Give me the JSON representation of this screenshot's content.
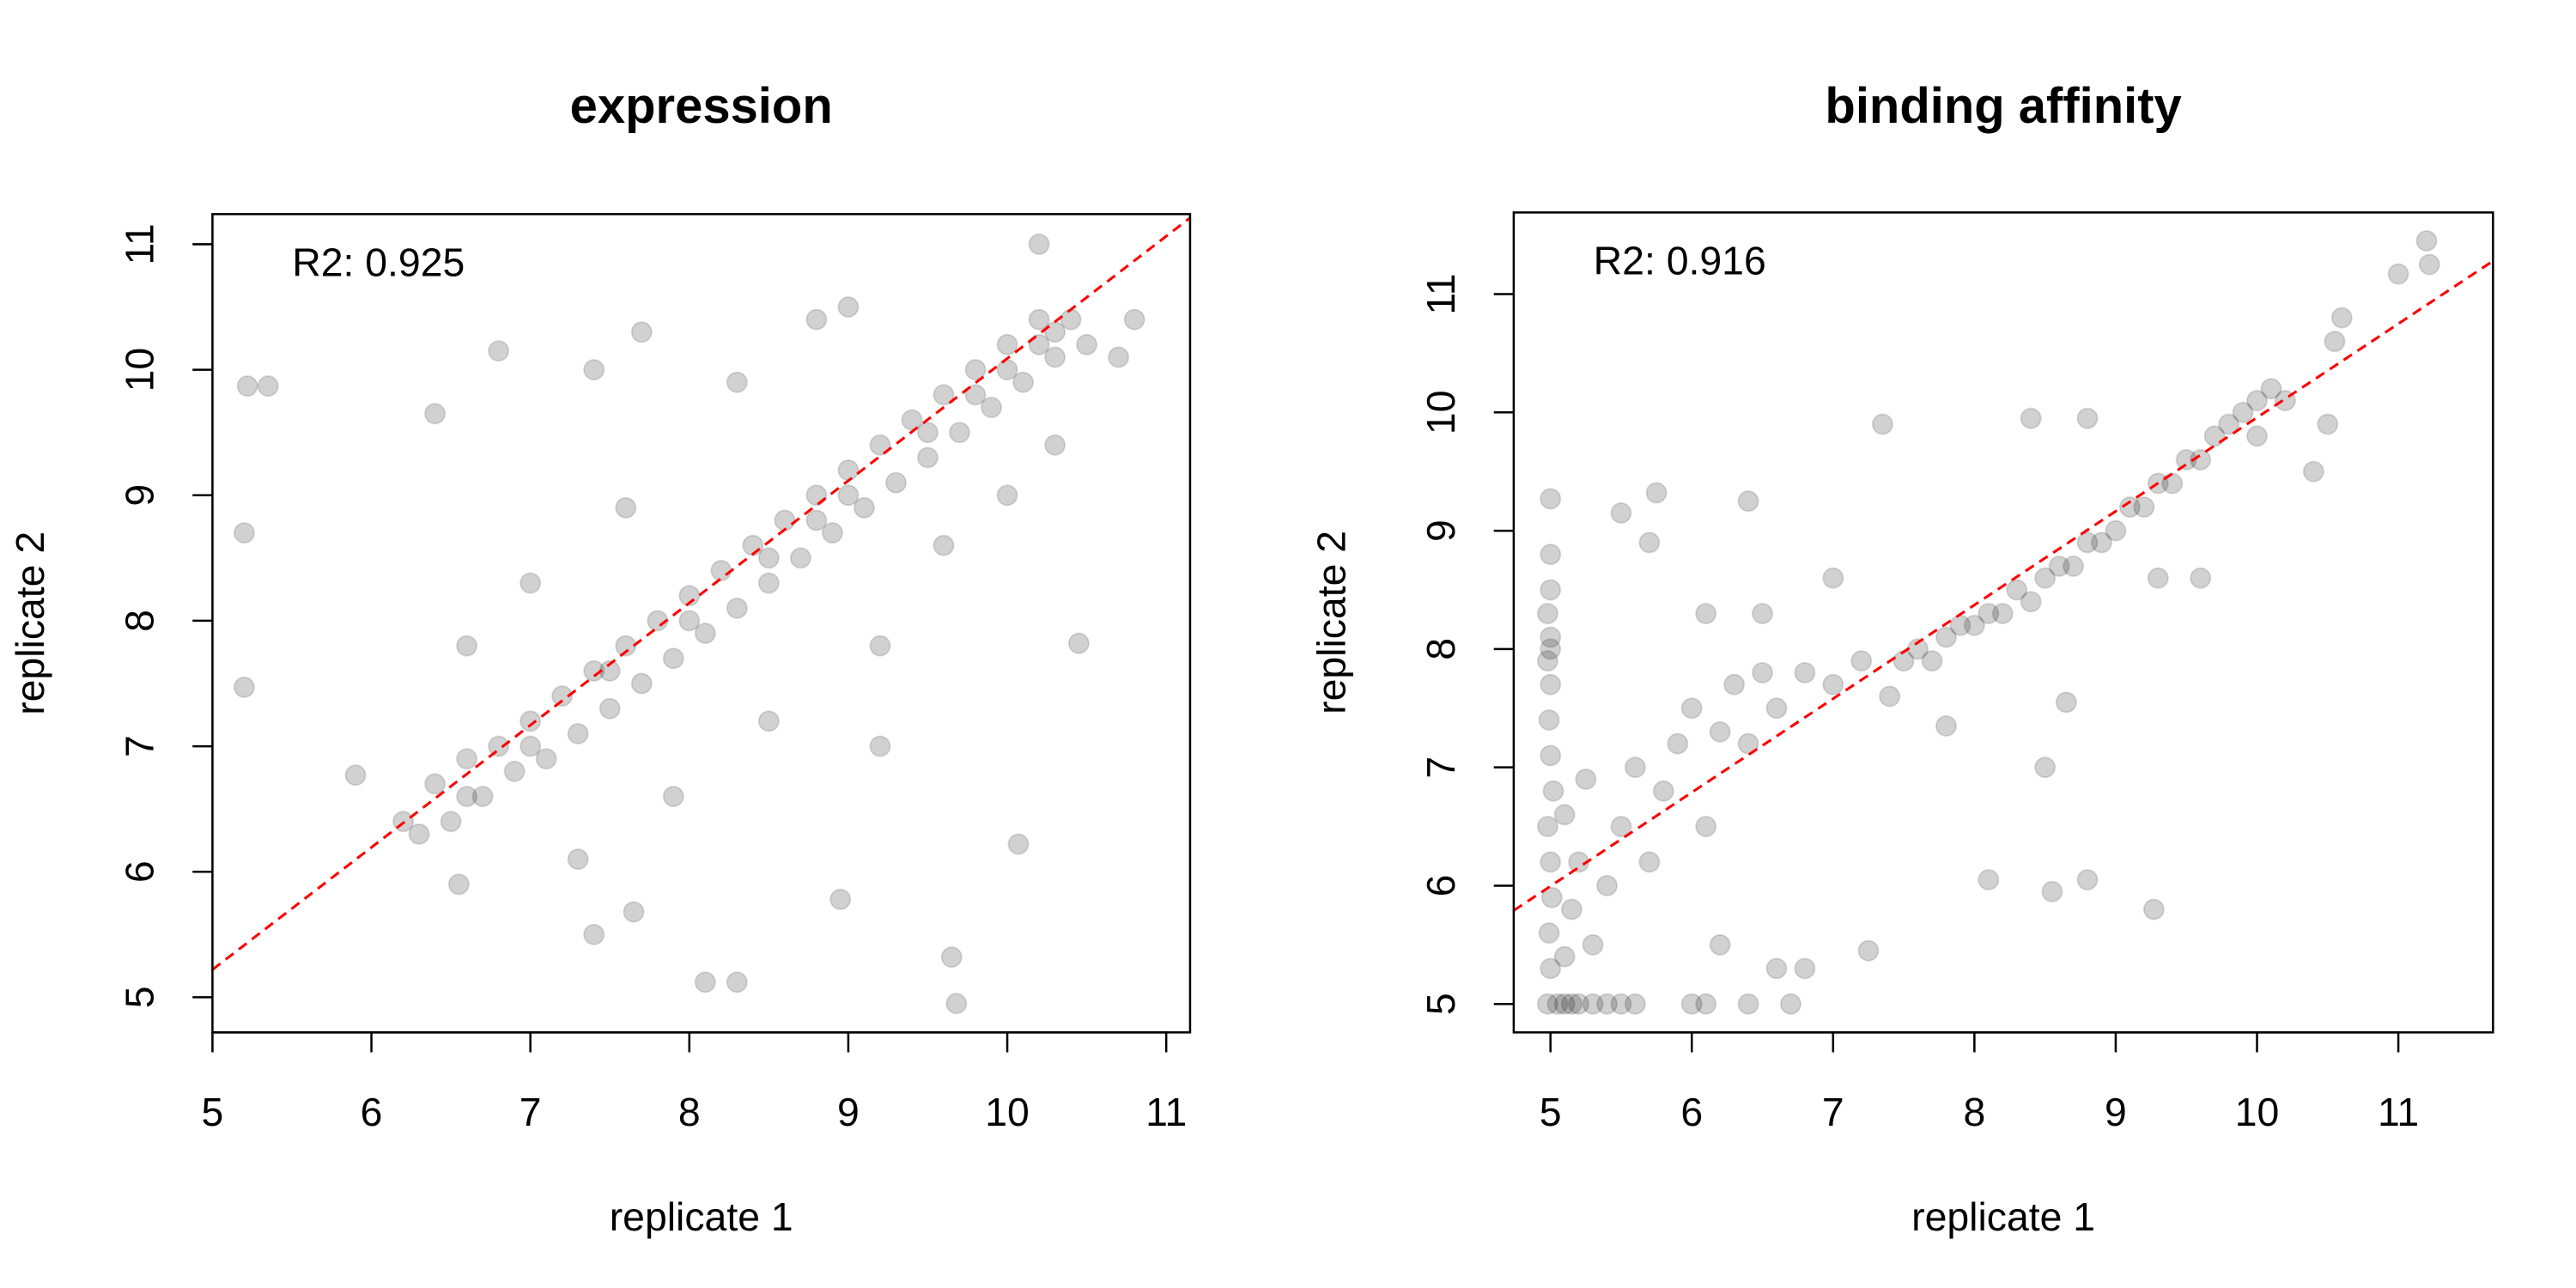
{
  "chart_data": [
    {
      "type": "scatter",
      "title": "expression",
      "x_label": "replicate 1",
      "y_label": "replicate 2",
      "annotation": "R2: 0.925",
      "color": "#000000",
      "xlim": [
        5,
        11.15
      ],
      "ylim": [
        4.72,
        11.24
      ],
      "xticks": [
        5,
        6,
        7,
        8,
        9,
        10,
        11
      ],
      "yticks": [
        5,
        6,
        7,
        8,
        9,
        10,
        11
      ],
      "reference_line": {
        "x": [
          5,
          11.15
        ],
        "y": [
          5.22,
          11.21
        ],
        "color": "#ff0000"
      },
      "x": [
        6.2,
        6.3,
        6.4,
        6.5,
        6.6,
        6.7,
        6.8,
        6.9,
        7.0,
        7.1,
        7.2,
        7.3,
        7.4,
        7.5,
        7.6,
        7.7,
        7.8,
        7.9,
        8.0,
        8.1,
        8.2,
        8.3,
        8.4,
        8.5,
        8.6,
        8.7,
        8.8,
        8.9,
        9.0,
        9.1,
        9.2,
        9.3,
        9.4,
        9.5,
        9.6,
        9.7,
        9.8,
        9.9,
        10.0,
        10.1,
        10.2,
        10.3,
        10.4,
        10.5,
        7.5,
        8.0,
        8.5,
        9.0,
        9.5,
        10.0,
        10.2,
        7.0,
        6.6,
        9.8,
        10.3,
        8.8,
        6.6,
        7.0,
        7.6,
        8.3,
        8.8,
        9.0,
        7.3,
        7.9,
        8.5,
        9.2,
        9.6,
        10.0,
        10.3,
        10.7,
        10.8,
        10.2,
        5.22,
        5.35,
        5.2,
        5.2,
        6.4,
        6.8,
        7.4,
        7.7,
        8.1,
        8.3,
        7.4,
        7.65,
        8.95,
        9.65,
        9.68,
        10.07,
        10.45,
        5.9,
        6.55,
        9.2
      ],
      "values": [
        6.4,
        6.3,
        6.7,
        6.4,
        6.9,
        6.6,
        7.0,
        6.8,
        7.2,
        6.9,
        7.4,
        7.1,
        7.6,
        7.3,
        7.8,
        7.5,
        8.0,
        7.7,
        8.2,
        7.9,
        8.4,
        8.1,
        8.6,
        8.3,
        8.8,
        8.5,
        9.0,
        8.7,
        9.2,
        8.9,
        9.4,
        9.1,
        9.6,
        9.3,
        9.8,
        9.5,
        10.0,
        9.7,
        10.2,
        9.9,
        10.4,
        10.1,
        10.4,
        10.2,
        7.6,
        8.0,
        8.5,
        9.0,
        9.5,
        10.0,
        10.2,
        7.0,
        6.6,
        9.8,
        10.3,
        8.8,
        7.8,
        8.3,
        8.9,
        9.9,
        10.4,
        10.5,
        6.1,
        6.6,
        7.2,
        7.8,
        8.6,
        9.0,
        9.4,
        10.1,
        10.4,
        11.0,
        9.87,
        9.87,
        8.7,
        7.47,
        9.65,
        10.15,
        10.0,
        10.3,
        5.12,
        5.12,
        5.5,
        5.68,
        5.78,
        5.32,
        4.95,
        6.22,
        7.82,
        6.77,
        5.9,
        7.0
      ]
    },
    {
      "type": "scatter",
      "title": "binding affinity",
      "x_label": "replicate 1",
      "y_label": "replicate 2",
      "annotation": "R2: 0.916",
      "color": "#000000",
      "xlim": [
        4.74,
        11.67
      ],
      "ylim": [
        4.76,
        11.69
      ],
      "xticks": [
        5,
        6,
        7,
        8,
        9,
        10,
        11
      ],
      "yticks": [
        5,
        6,
        7,
        8,
        9,
        10,
        11
      ],
      "reference_line": {
        "x": [
          4.74,
          11.67
        ],
        "y": [
          5.79,
          11.28
        ],
        "color": "#ff0000"
      },
      "x": [
        4.98,
        5.0,
        4.99,
        5.01,
        5.0,
        4.98,
        5.02,
        5.0,
        4.99,
        5.0,
        5.0,
        4.98,
        5.0,
        5.0,
        5.0,
        5.05,
        5.1,
        5.15,
        5.2,
        5.3,
        5.4,
        5.5,
        5.6,
        5.1,
        5.15,
        5.2,
        5.1,
        5.25,
        5.3,
        5.4,
        5.5,
        5.6,
        5.7,
        5.8,
        5.9,
        6.0,
        6.1,
        6.2,
        6.3,
        6.4,
        6.5,
        6.6,
        6.8,
        7.0,
        7.2,
        7.4,
        7.5,
        7.6,
        7.7,
        7.8,
        7.9,
        8.0,
        8.1,
        8.2,
        8.3,
        8.4,
        8.5,
        8.6,
        8.7,
        8.8,
        8.9,
        9.0,
        9.1,
        9.2,
        9.3,
        9.4,
        9.5,
        9.6,
        9.7,
        9.8,
        9.9,
        10.0,
        10.1,
        10.2,
        5.5,
        5.75,
        6.4,
        5.7,
        6.1,
        6.0,
        6.1,
        6.4,
        6.6,
        6.7,
        6.8,
        6.2,
        7.25,
        8.1,
        8.55,
        8.8,
        9.27,
        8.5,
        8.65,
        7.35,
        8.4,
        8.8,
        10.0,
        10.4,
        10.5,
        10.6,
        10.55,
        11.0,
        11.2,
        11.22,
        7.0,
        6.5,
        7.8,
        9.3,
        9.6,
        5.0,
        4.98
      ],
      "values": [
        5.0,
        5.3,
        5.6,
        5.9,
        6.2,
        6.5,
        6.8,
        7.1,
        7.4,
        7.7,
        8.0,
        8.3,
        8.5,
        8.8,
        9.27,
        5.0,
        5.0,
        5.0,
        5.0,
        5.0,
        5.0,
        5.0,
        5.0,
        5.4,
        5.8,
        6.2,
        6.6,
        6.9,
        5.5,
        6.0,
        6.5,
        7.0,
        6.2,
        6.8,
        7.2,
        7.5,
        6.5,
        7.3,
        7.7,
        7.2,
        7.8,
        7.5,
        7.8,
        7.7,
        7.9,
        7.6,
        7.9,
        8.0,
        7.9,
        8.1,
        8.2,
        8.2,
        8.3,
        8.3,
        8.5,
        8.4,
        8.6,
        8.7,
        8.7,
        8.9,
        8.9,
        9.0,
        9.2,
        9.2,
        9.4,
        9.4,
        9.6,
        9.6,
        9.8,
        9.9,
        10.0,
        10.1,
        10.2,
        10.1,
        9.15,
        9.32,
        9.25,
        8.9,
        8.3,
        5.0,
        5.0,
        5.0,
        5.3,
        5.0,
        5.3,
        5.5,
        5.45,
        6.05,
        5.95,
        6.05,
        5.8,
        7.0,
        7.55,
        9.9,
        9.95,
        9.95,
        9.8,
        9.5,
        9.9,
        10.8,
        10.6,
        11.17,
        11.45,
        11.25,
        8.6,
        8.3,
        7.35,
        8.6,
        8.6,
        8.1,
        7.9
      ]
    }
  ]
}
